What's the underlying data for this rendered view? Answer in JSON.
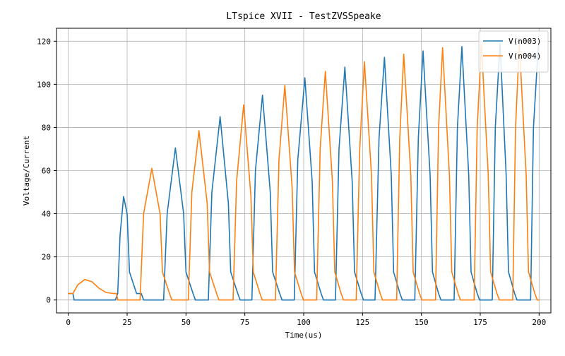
{
  "chart_data": {
    "type": "line",
    "title": "LTspice XVII - TestZVSSpeake",
    "xlabel": "Time(us)",
    "ylabel": "Voltage/Current",
    "xlim": [
      -5,
      205
    ],
    "ylim": [
      -6,
      126
    ],
    "xticks": [
      0,
      25,
      50,
      75,
      100,
      125,
      150,
      175,
      200
    ],
    "yticks": [
      0,
      20,
      40,
      60,
      80,
      100,
      120
    ],
    "grid": true,
    "legend_position": "top-right",
    "series": [
      {
        "name": "V(n003)",
        "color": "#1f77b4",
        "x": [
          0,
          2,
          2.5,
          20,
          21,
          22,
          23.5,
          25,
          26,
          29,
          31,
          32,
          40.5,
          42,
          45.5,
          49,
          50,
          53,
          54,
          59.5,
          61,
          64.5,
          68,
          69,
          72,
          73,
          78,
          79.5,
          82.5,
          85.8,
          86.8,
          89.8,
          90.8,
          96,
          97.5,
          100.5,
          103.6,
          104.6,
          107.4,
          108.4,
          113.5,
          115,
          117.5,
          120.6,
          121.6,
          124.4,
          125.4,
          130.3,
          132,
          134.3,
          137.2,
          138.2,
          140.9,
          141.9,
          147.2,
          148.7,
          150.7,
          153.7,
          154.7,
          157.3,
          158.3,
          163.9,
          165.3,
          167.2,
          170.1,
          171.1,
          173.7,
          174.7,
          180.1,
          181.4,
          183.4,
          186,
          187,
          189.6,
          190.6,
          196.4,
          197.6,
          199.6,
          200
        ],
        "y": [
          3,
          3,
          0,
          0,
          3,
          30,
          48,
          40,
          13,
          3,
          3,
          0,
          0,
          40,
          70.5,
          40,
          13,
          3,
          0,
          0,
          50,
          85,
          45,
          13,
          3,
          0,
          0,
          60,
          95,
          50,
          13,
          3,
          0,
          0,
          65,
          103,
          55,
          13,
          3,
          0,
          0,
          70,
          108,
          55,
          13,
          3,
          0,
          0,
          75,
          112.5,
          58,
          13,
          3,
          0,
          0,
          75,
          115.5,
          58,
          13,
          3,
          0,
          0,
          80,
          117.5,
          58,
          13,
          3,
          0,
          0,
          80,
          119,
          58,
          13,
          3,
          0,
          0,
          80,
          117,
          119
        ]
      },
      {
        "name": "V(n004)",
        "color": "#ff7f0e",
        "x": [
          0,
          2,
          4,
          7,
          10,
          13,
          16,
          19,
          20.5,
          21,
          30.5,
          32,
          35.5,
          39,
          40,
          43,
          44,
          51,
          52.5,
          55.5,
          59,
          60,
          63,
          64,
          70,
          71.5,
          74.5,
          77.6,
          78.6,
          81.4,
          82.4,
          88,
          89.5,
          92,
          95.1,
          96.1,
          98.9,
          99.9,
          105.5,
          107,
          109.2,
          112.2,
          113.2,
          115.9,
          116.9,
          122.3,
          123.8,
          125.8,
          128.8,
          129.8,
          132.5,
          133.5,
          139.5,
          140.8,
          142.5,
          145.5,
          146.5,
          149.2,
          150.2,
          156,
          157.3,
          159,
          161.9,
          162.9,
          165.6,
          166.6,
          172.4,
          173.7,
          175.5,
          178.4,
          179.4,
          182.1,
          183.1,
          188.8,
          190,
          191.6,
          194.5,
          195.5,
          198.2,
          199.2,
          200
        ],
        "y": [
          3,
          3,
          7,
          9.5,
          8.5,
          5.5,
          3.5,
          3,
          3,
          0,
          0,
          40,
          61,
          40,
          13,
          3,
          0,
          0,
          50,
          78.5,
          45,
          13,
          3,
          0,
          0,
          55,
          90.5,
          48,
          13,
          3,
          0,
          0,
          65,
          99.5,
          52,
          13,
          3,
          0,
          0,
          70,
          106,
          55,
          13,
          3,
          0,
          0,
          70,
          110.5,
          58,
          13,
          3,
          0,
          0,
          75,
          114,
          58,
          13,
          3,
          0,
          0,
          80,
          117,
          58,
          13,
          3,
          0,
          0,
          80,
          118.5,
          58,
          13,
          3,
          0,
          0,
          80,
          119,
          58,
          13,
          3,
          0,
          0
        ]
      }
    ]
  }
}
